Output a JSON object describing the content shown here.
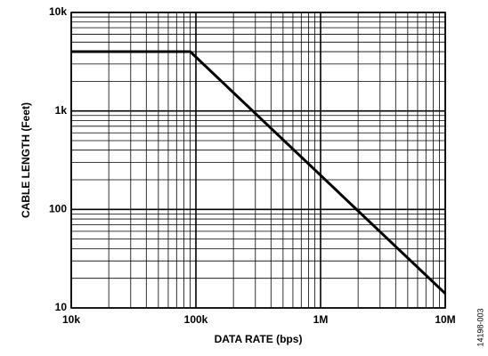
{
  "chart_data": {
    "type": "line",
    "xlabel": "DATA RATE (bps)",
    "ylabel": "CABLE LENGTH (Feet)",
    "note": "14198-003",
    "x": [
      10000,
      90000,
      10000000
    ],
    "values": [
      4000,
      4000,
      14
    ],
    "color": "#000000",
    "xscale": "log",
    "yscale": "log",
    "grid": true,
    "xlim": [
      10000,
      10000000
    ],
    "ylim": [
      10,
      10000
    ],
    "xticks": [
      {
        "value": 10000,
        "label": "10k"
      },
      {
        "value": 100000,
        "label": "100k"
      },
      {
        "value": 1000000,
        "label": "1M"
      },
      {
        "value": 10000000,
        "label": "10M"
      }
    ],
    "yticks": [
      10,
      100,
      {
        "value": 1000,
        "label": "1k"
      },
      {
        "value": 10000,
        "label": "10k"
      }
    ]
  }
}
